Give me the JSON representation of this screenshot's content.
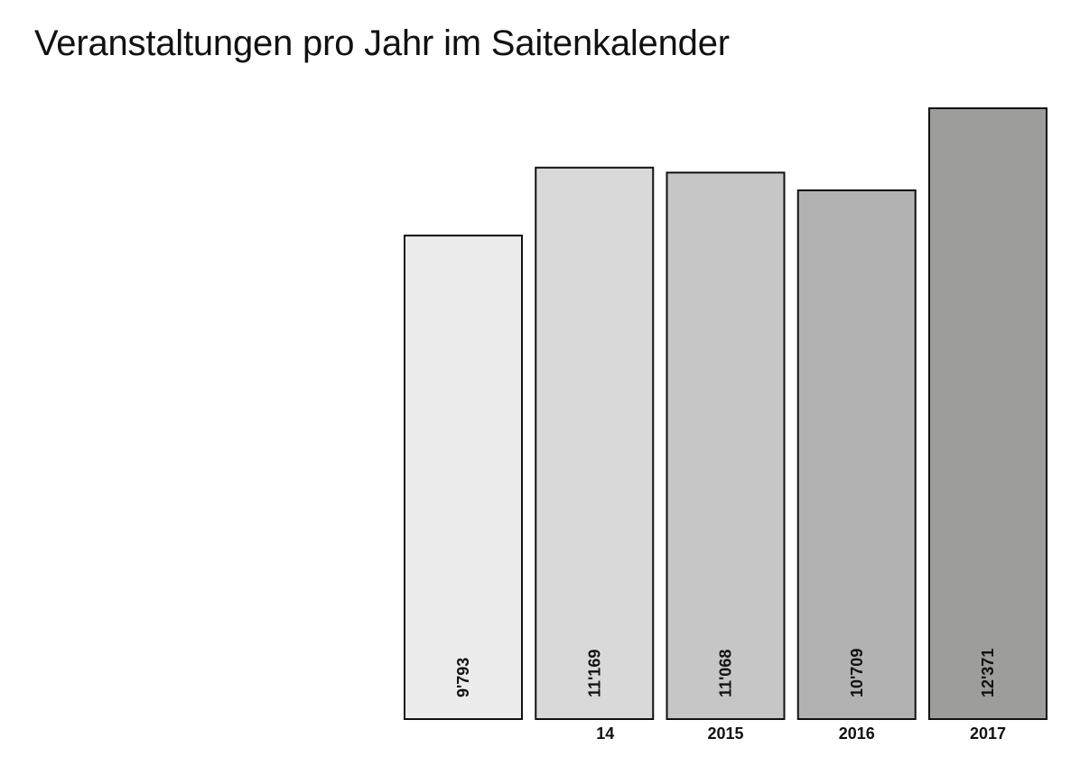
{
  "chart_data": {
    "type": "bar",
    "title": "Veranstaltungen pro Jahr im Saitenkalender",
    "categories": [
      "",
      "14",
      "2015",
      "2016",
      "2017"
    ],
    "values": [
      9793,
      11169,
      11068,
      10709,
      12371
    ],
    "value_labels": [
      "9'793",
      "11'169",
      "11'068",
      "10'709",
      "12'371"
    ],
    "colors": [
      "#ececec",
      "#d9d9d9",
      "#c6c6c6",
      "#b2b2b2",
      "#9d9d9b"
    ],
    "ylim": [
      0,
      12371
    ],
    "grid": false,
    "legend": "none"
  }
}
